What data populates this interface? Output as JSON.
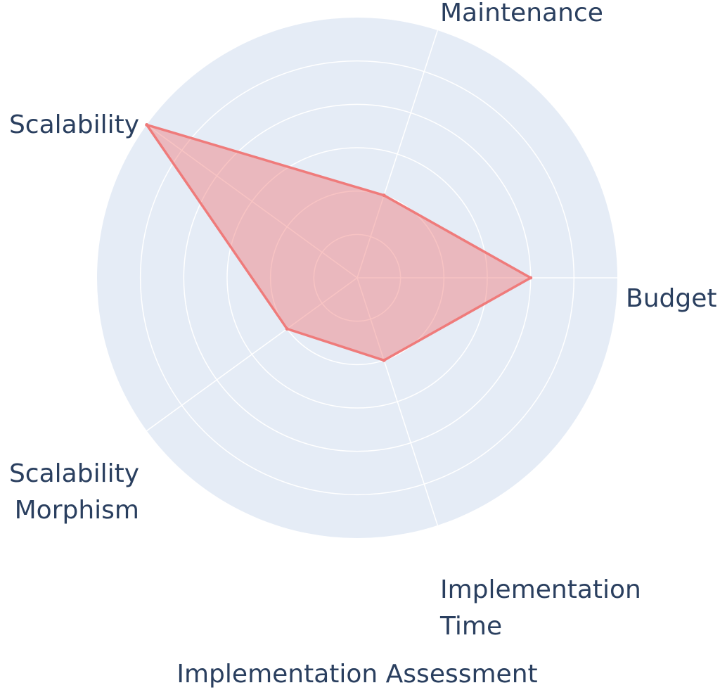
{
  "chart_data": {
    "type": "radar",
    "title": "Implementation Assessment",
    "categories": [
      {
        "label": "Budget",
        "lines": [
          "Budget"
        ]
      },
      {
        "label": "Maintenance",
        "lines": [
          "Maintenance"
        ]
      },
      {
        "label": "Scalability",
        "lines": [
          "Scalability"
        ]
      },
      {
        "label": "Scalability Morphism",
        "lines": [
          "Scalability",
          "Morphism"
        ]
      },
      {
        "label": "Implementation Time",
        "lines": [
          "Implementation",
          "Time"
        ]
      }
    ],
    "series": [
      {
        "values": [
          4,
          2,
          6,
          2,
          2
        ]
      }
    ],
    "radial_range": [
      0,
      6
    ],
    "radial_gridlines": [
      1,
      2,
      3,
      4,
      5,
      6
    ],
    "grid": true,
    "legend": "none",
    "colors": {
      "polar_background": "#e5ecf6",
      "grid": "#ffffff",
      "series_line": "#ef7b7b",
      "series_fill": "rgba(239,123,123,0.45)",
      "text": "#2a3f5f"
    }
  }
}
